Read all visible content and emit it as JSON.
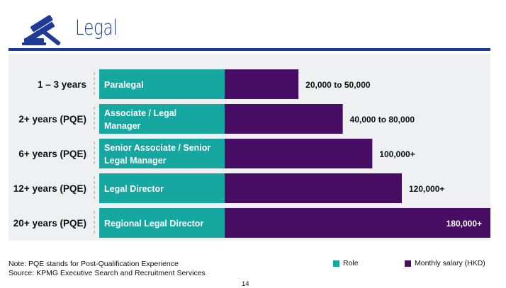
{
  "header": {
    "title": "Legal",
    "icon": "gavel-icon",
    "accent_color": "#1e3c96"
  },
  "colors": {
    "role": "#15a7a0",
    "salary": "#470d62",
    "panel": "#eef0f2"
  },
  "chart_data": {
    "type": "bar",
    "orientation": "horizontal",
    "categories": [
      "1 – 3 years",
      "2+ years (PQE)",
      "6+ years (PQE)",
      "12+ years (PQE)",
      "20+ years (PQE)"
    ],
    "roles": [
      [
        "Paralegal"
      ],
      [
        "Associate / Legal",
        "Manager"
      ],
      [
        "Senior Associate / Senior",
        "Legal Manager"
      ],
      [
        "Legal Director"
      ],
      [
        "Regional Legal Director"
      ]
    ],
    "series": [
      {
        "name": "Monthly salary (HKD)",
        "values": [
          50000,
          80000,
          100000,
          120000,
          180000
        ],
        "labels": [
          "20,000 to 50,000",
          "40,000 to 80,000",
          "100,000+",
          "120,000+",
          "180,000+"
        ]
      }
    ],
    "legend": [
      "Role",
      "Monthly salary (HKD)"
    ],
    "legend_position": "bottom-right"
  },
  "notes": [
    "Note: PQE stands for Post-Qualification Experience",
    "Source: KPMG Executive Search and Recruitment Services"
  ],
  "page_number": "14"
}
